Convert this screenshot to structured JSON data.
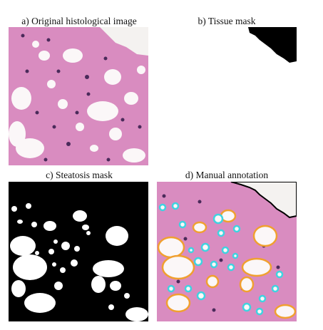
{
  "figure": {
    "panels": [
      {
        "id": "a",
        "caption": "a) Original histological image"
      },
      {
        "id": "b",
        "caption": "b) Tissue mask"
      },
      {
        "id": "c",
        "caption": "c) Steatosis mask"
      },
      {
        "id": "d",
        "caption": "d) Manual annotation"
      }
    ]
  },
  "colors": {
    "tissue_pink": "#d98cc0",
    "nuclei": "#4a2a5a",
    "background_slide": "#f4f2f0",
    "fat_vacuole": "#fbf7f8",
    "mask_black": "#000000",
    "mask_white": "#ffffff",
    "annotation_large": "#f0a030",
    "annotation_small": "#3fd3e0"
  }
}
